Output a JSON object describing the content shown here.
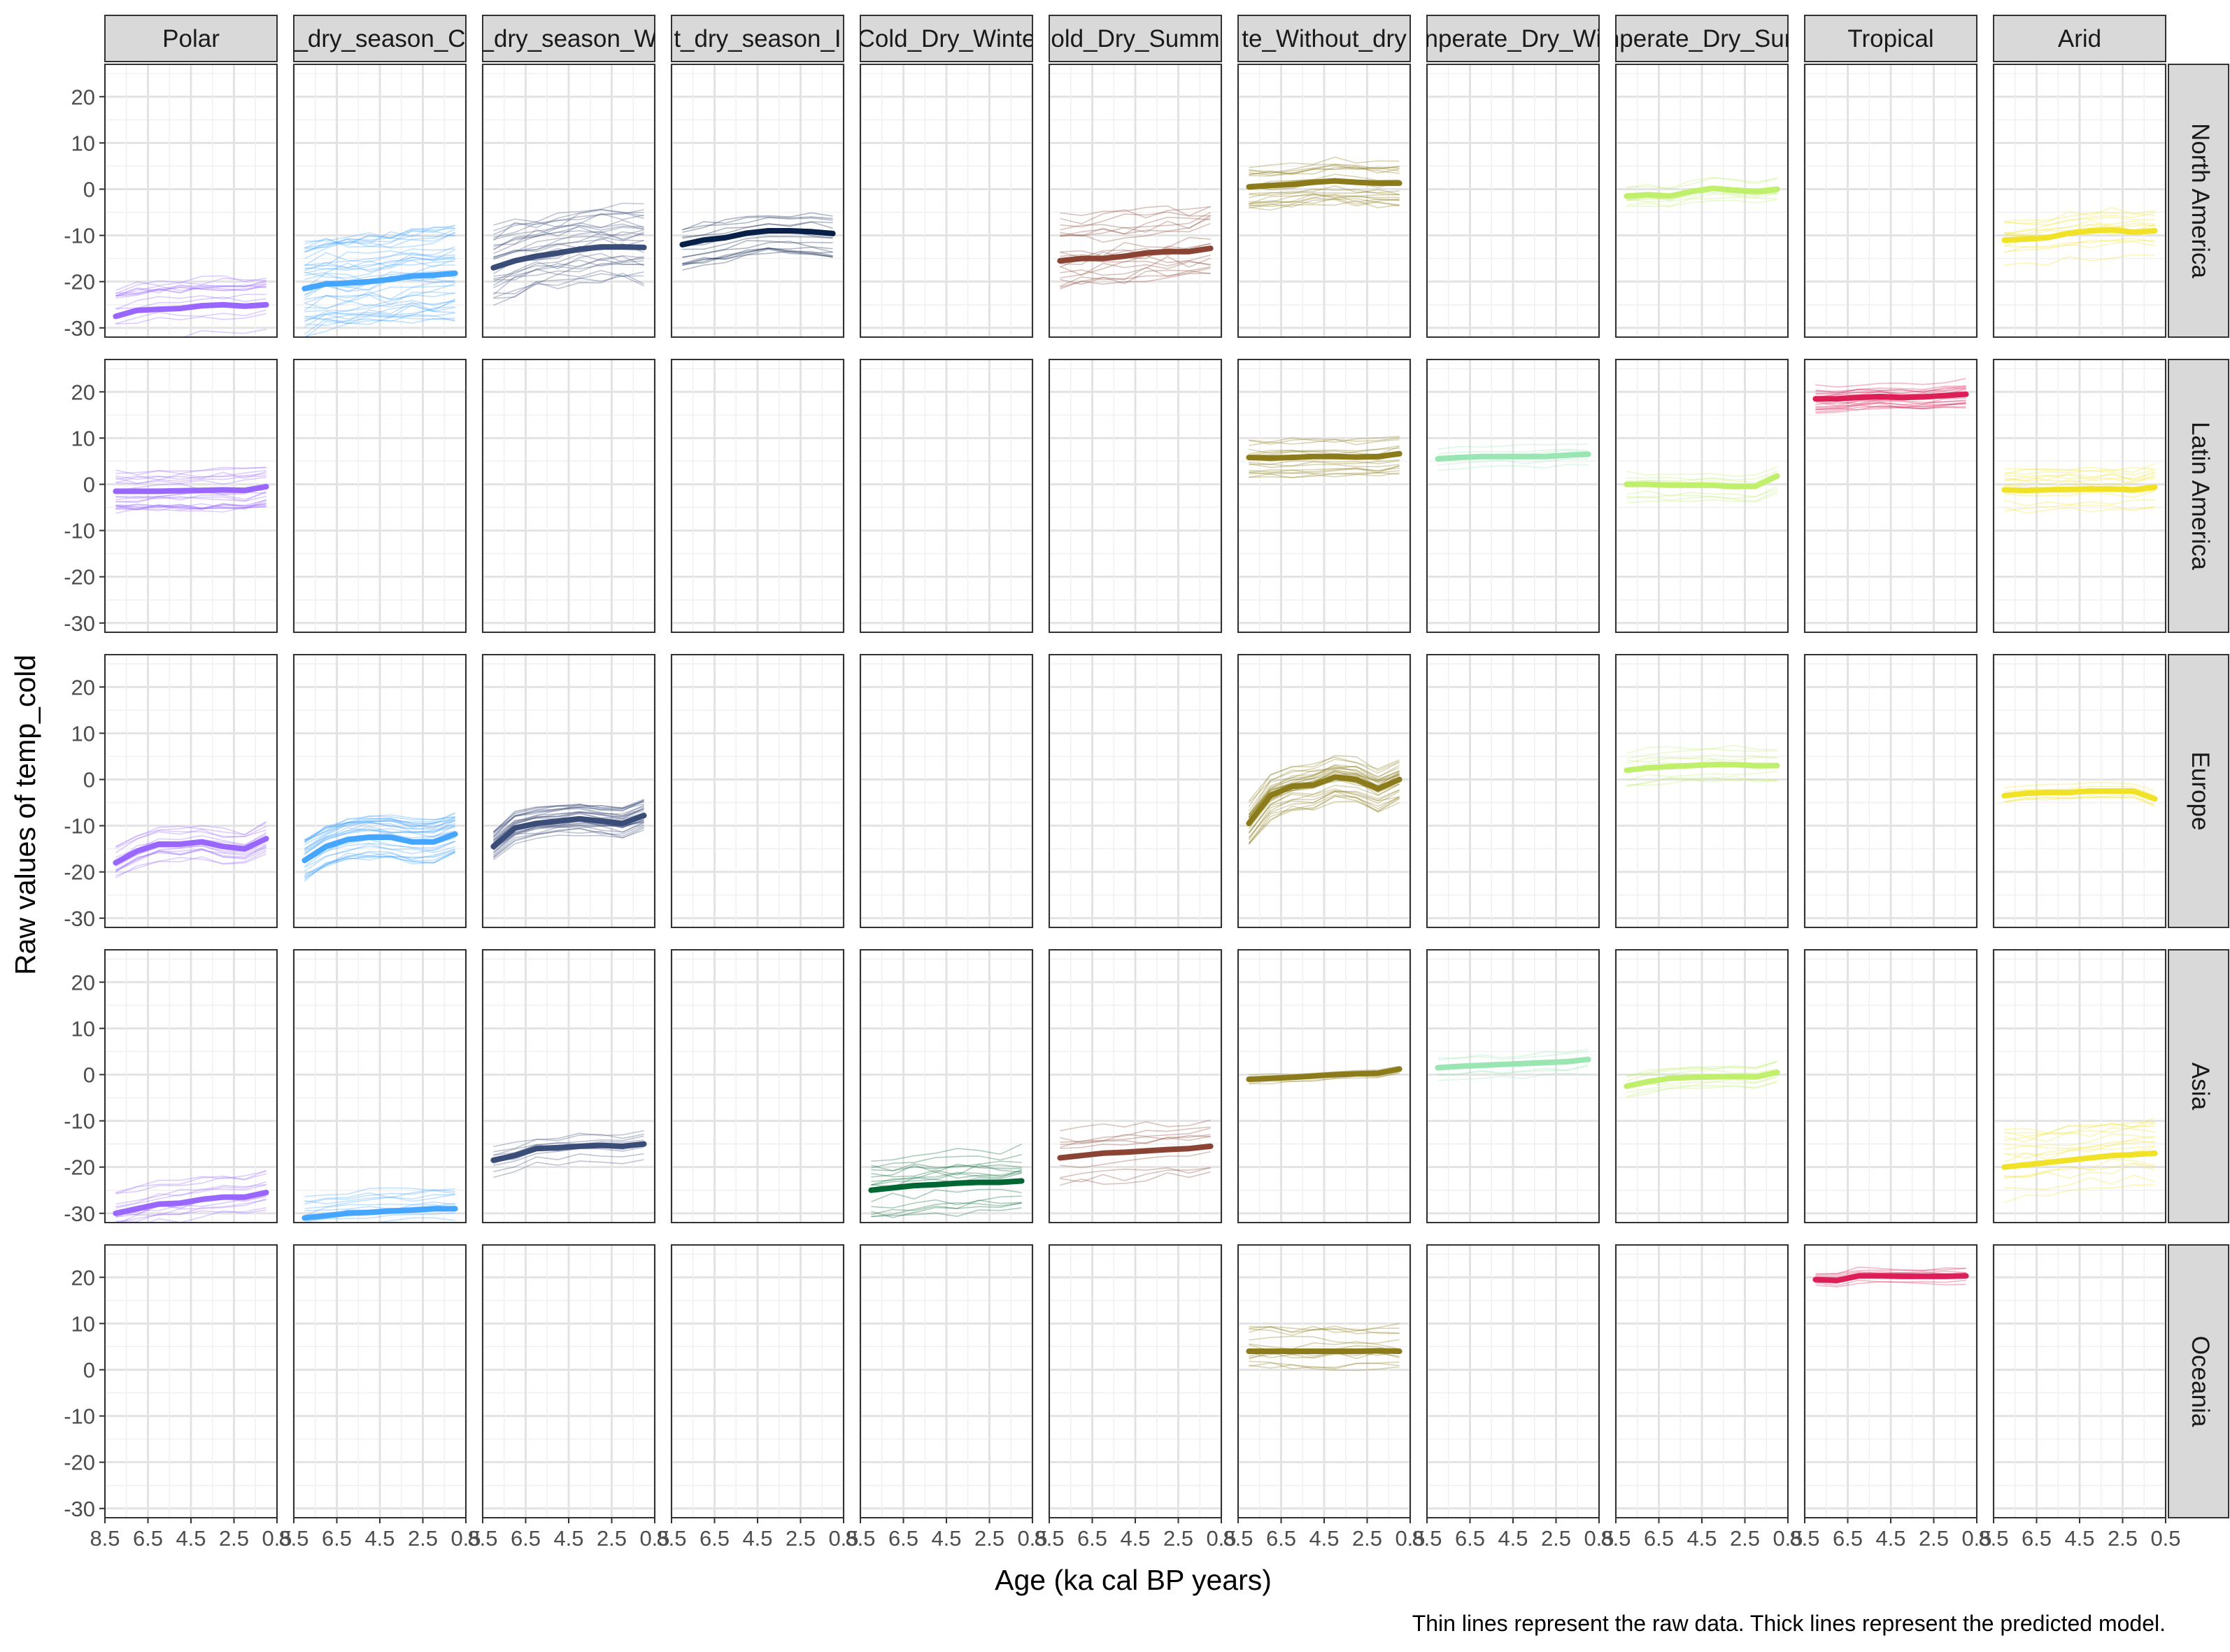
{
  "chart_data": {
    "type": "line",
    "title": "",
    "xlabel": "Age (ka cal BP years)",
    "ylabel": "Raw values of temp_cold",
    "caption": "Thin lines represent the raw data. Thick lines represent the predicted model.",
    "xlim": [
      8.5,
      0.5
    ],
    "ylim": [
      -32,
      27
    ],
    "x_ticks": [
      8.5,
      6.5,
      4.5,
      2.5,
      0.5
    ],
    "x_tick_labels": [
      "8.5",
      "6.5",
      "4.5",
      "2.5",
      "0.5"
    ],
    "y_ticks": [
      20,
      10,
      0,
      -10,
      -20,
      -30
    ],
    "y_tick_labels": [
      "20",
      "10",
      "0",
      "-10",
      "-20",
      "-30"
    ],
    "grid": true,
    "legend": "none",
    "column_labels": [
      "Polar",
      "_dry_season_C",
      "_dry_season_W",
      "t_dry_season_I",
      "Cold_Dry_Winte",
      "old_Dry_Summ",
      "te_Without_dry",
      "nperate_Dry_Wi",
      "nperate_Dry_Sun",
      "Tropical",
      "Arid"
    ],
    "row_labels": [
      "North America",
      "Latin America",
      "Europe",
      "Asia",
      "Oceania"
    ],
    "column_colors": [
      "#9966FF",
      "#44A6FF",
      "#3A4C78",
      "#06204A",
      "#006633",
      "#8B4334",
      "#8B7B1A",
      "#99E6B3",
      "#BFEF6B",
      "#DD1E57",
      "#F2E227"
    ],
    "age_points": [
      8.0,
      7.0,
      6.0,
      5.0,
      4.0,
      3.0,
      2.0,
      1.0
    ],
    "panels": [
      {
        "row": 0,
        "col": 0,
        "model": [
          -27.5,
          -26.2,
          -26,
          -25.8,
          -25.2,
          -25.0,
          -25.3,
          -25.0
        ],
        "raw_spread": 5,
        "raw_lines": 14
      },
      {
        "row": 0,
        "col": 1,
        "model": [
          -21.5,
          -20.5,
          -20.3,
          -20.0,
          -19.5,
          -18.8,
          -18.6,
          -18.2
        ],
        "raw_spread": 8,
        "raw_lines": 40
      },
      {
        "row": 0,
        "col": 2,
        "model": [
          -17,
          -15.5,
          -14.5,
          -13.8,
          -13.0,
          -12.5,
          -12.5,
          -12.6
        ],
        "raw_spread": 7,
        "raw_lines": 30
      },
      {
        "row": 0,
        "col": 3,
        "model": [
          -12,
          -11.0,
          -10.5,
          -9.5,
          -9.0,
          -9.0,
          -9.2,
          -9.6
        ],
        "raw_spread": 4,
        "raw_lines": 16
      },
      {
        "row": 0,
        "col": 5,
        "model": [
          -15.5,
          -15.0,
          -15.0,
          -14.5,
          -13.8,
          -13.5,
          -13.5,
          -12.8
        ],
        "raw_spread": 8,
        "raw_lines": 20
      },
      {
        "row": 0,
        "col": 6,
        "model": [
          0.5,
          0.8,
          1.0,
          1.5,
          1.8,
          1.5,
          1.3,
          1.3
        ],
        "raw_spread": 4,
        "raw_lines": 22
      },
      {
        "row": 0,
        "col": 8,
        "model": [
          -1.5,
          -1.2,
          -1.5,
          -0.5,
          0.2,
          -0.2,
          -0.5,
          0.0
        ],
        "raw_spread": 2.5,
        "raw_lines": 12
      },
      {
        "row": 0,
        "col": 10,
        "model": [
          -11,
          -10.8,
          -10.5,
          -9.5,
          -9.0,
          -8.8,
          -9.3,
          -9.0
        ],
        "raw_spread": 5,
        "raw_lines": 14
      },
      {
        "row": 1,
        "col": 0,
        "model": [
          -1.5,
          -1.5,
          -1.5,
          -1.4,
          -1.3,
          -1.2,
          -1.3,
          -0.5
        ],
        "raw_spread": 4,
        "raw_lines": 22
      },
      {
        "row": 1,
        "col": 6,
        "model": [
          5.8,
          5.7,
          5.8,
          6.0,
          6.0,
          5.9,
          6.0,
          6.6
        ],
        "raw_spread": 3.5,
        "raw_lines": 20
      },
      {
        "row": 1,
        "col": 7,
        "model": [
          5.5,
          5.8,
          6.0,
          6.0,
          6.0,
          6.0,
          6.3,
          6.5
        ],
        "raw_spread": 2,
        "raw_lines": 6
      },
      {
        "row": 1,
        "col": 8,
        "model": [
          0.0,
          0.0,
          -0.2,
          -0.2,
          -0.2,
          -0.5,
          -0.4,
          1.8
        ],
        "raw_spread": 3,
        "raw_lines": 10
      },
      {
        "row": 1,
        "col": 9,
        "model": [
          18.5,
          18.5,
          18.8,
          19.0,
          18.8,
          18.9,
          19.2,
          19.5
        ],
        "raw_spread": 2.5,
        "raw_lines": 18
      },
      {
        "row": 1,
        "col": 10,
        "model": [
          -1.2,
          -1.3,
          -1.2,
          -1.1,
          -1.0,
          -1.0,
          -1.2,
          -0.6
        ],
        "raw_spread": 4,
        "raw_lines": 14
      },
      {
        "row": 2,
        "col": 0,
        "model": [
          -18,
          -15.5,
          -14.0,
          -14.0,
          -13.5,
          -14.5,
          -15.0,
          -12.8
        ],
        "raw_spread": 3,
        "raw_lines": 14
      },
      {
        "row": 2,
        "col": 1,
        "model": [
          -17.5,
          -14.5,
          -13.0,
          -12.5,
          -12.5,
          -13.5,
          -13.5,
          -11.8
        ],
        "raw_spread": 4,
        "raw_lines": 30
      },
      {
        "row": 2,
        "col": 2,
        "model": [
          -14.5,
          -10.5,
          -9.5,
          -9.0,
          -8.5,
          -9.0,
          -9.5,
          -7.8
        ],
        "raw_spread": 3,
        "raw_lines": 30
      },
      {
        "row": 2,
        "col": 6,
        "model": [
          -9.5,
          -3.5,
          -1.5,
          -1.2,
          0.5,
          0.0,
          -2.0,
          0.0
        ],
        "raw_spread": 4,
        "raw_lines": 34
      },
      {
        "row": 2,
        "col": 8,
        "model": [
          2.0,
          2.5,
          2.8,
          3.0,
          3.2,
          3.2,
          3.0,
          3.0
        ],
        "raw_spread": 3.5,
        "raw_lines": 10
      },
      {
        "row": 2,
        "col": 10,
        "model": [
          -3.5,
          -3.0,
          -2.8,
          -2.8,
          -2.5,
          -2.5,
          -2.5,
          -4.2
        ],
        "raw_spread": 1.5,
        "raw_lines": 6
      },
      {
        "row": 3,
        "col": 0,
        "model": [
          -30.0,
          -29.0,
          -28.0,
          -27.8,
          -27.0,
          -26.5,
          -26.5,
          -25.5
        ],
        "raw_spread": 4,
        "raw_lines": 14
      },
      {
        "row": 3,
        "col": 1,
        "model": [
          -31.0,
          -30.5,
          -30.0,
          -29.8,
          -29.5,
          -29.3,
          -29.0,
          -29.0
        ],
        "raw_spread": 4,
        "raw_lines": 12
      },
      {
        "row": 3,
        "col": 2,
        "model": [
          -18.5,
          -17.5,
          -16.0,
          -15.8,
          -15.5,
          -15.3,
          -15.5,
          -15.0
        ],
        "raw_spread": 3,
        "raw_lines": 10
      },
      {
        "row": 3,
        "col": 4,
        "model": [
          -25.0,
          -24.5,
          -24.0,
          -23.8,
          -23.5,
          -23.3,
          -23.3,
          -23.0
        ],
        "raw_spread": 6,
        "raw_lines": 16
      },
      {
        "row": 3,
        "col": 5,
        "model": [
          -18.0,
          -17.5,
          -17.0,
          -16.8,
          -16.5,
          -16.2,
          -16.0,
          -15.5
        ],
        "raw_spread": 5,
        "raw_lines": 10
      },
      {
        "row": 3,
        "col": 6,
        "model": [
          -1.0,
          -0.8,
          -0.6,
          -0.3,
          0.0,
          0.2,
          0.3,
          1.2
        ],
        "raw_spread": 1.5,
        "raw_lines": 6
      },
      {
        "row": 3,
        "col": 7,
        "model": [
          1.5,
          1.8,
          2.0,
          2.2,
          2.4,
          2.6,
          2.8,
          3.3
        ],
        "raw_spread": 2.5,
        "raw_lines": 6
      },
      {
        "row": 3,
        "col": 8,
        "model": [
          -2.5,
          -1.5,
          -0.8,
          -0.6,
          -0.5,
          -0.4,
          -0.5,
          0.5
        ],
        "raw_spread": 2.5,
        "raw_lines": 8
      },
      {
        "row": 3,
        "col": 10,
        "model": [
          -20.0,
          -19.5,
          -19.0,
          -18.5,
          -18.0,
          -17.5,
          -17.3,
          -17.0
        ],
        "raw_spread": 6,
        "raw_lines": 16
      },
      {
        "row": 4,
        "col": 6,
        "model": [
          4.0,
          4.0,
          4.0,
          4.0,
          4.0,
          4.0,
          4.1,
          4.0
        ],
        "raw_spread": 5,
        "raw_lines": 14
      },
      {
        "row": 4,
        "col": 9,
        "model": [
          19.5,
          19.3,
          20.3,
          20.3,
          20.2,
          20.2,
          20.2,
          20.3
        ],
        "raw_spread": 2,
        "raw_lines": 8
      }
    ]
  }
}
